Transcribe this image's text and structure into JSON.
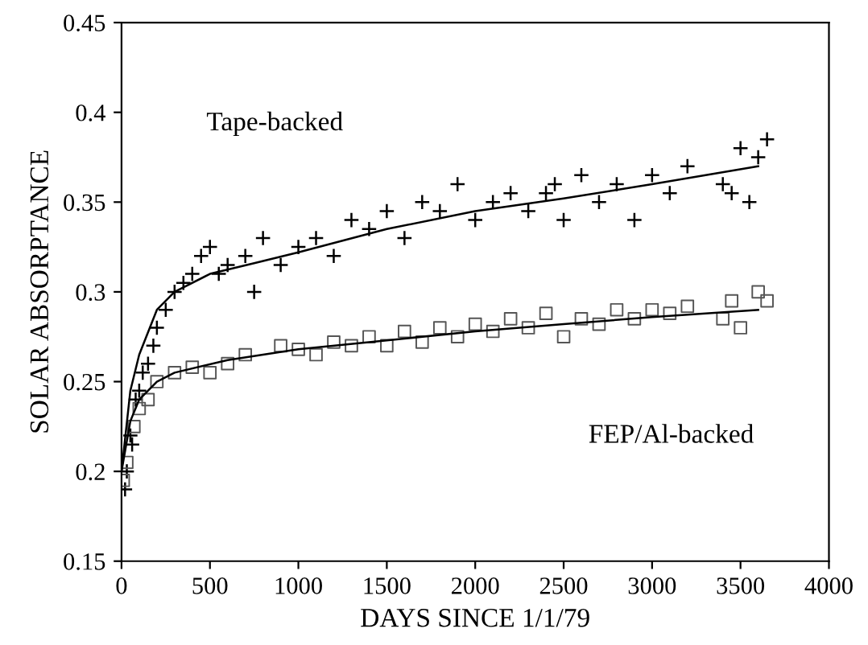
{
  "chart_data": {
    "type": "scatter",
    "xlabel": "DAYS SINCE 1/1/79",
    "ylabel": "SOLAR ABSORPTANCE",
    "xlim": [
      0,
      4000
    ],
    "xticks": [
      0,
      500,
      1000,
      1500,
      2000,
      2500,
      3000,
      3500,
      4000
    ],
    "ylim": [
      0.15,
      0.45
    ],
    "yticks": [
      0.15,
      0.2,
      0.25,
      0.3,
      0.35,
      0.4,
      0.45
    ],
    "grid": false,
    "legend": false,
    "annotations": [
      "Tape-backed",
      "FEP/Al-backed"
    ],
    "series": [
      {
        "type": "scatter",
        "marker": "cross",
        "color": "#000000",
        "x": [
          20,
          30,
          50,
          60,
          80,
          100,
          120,
          150,
          180,
          200,
          250,
          300,
          350,
          400,
          450,
          500,
          550,
          600,
          700,
          750,
          800,
          900,
          1000,
          1100,
          1200,
          1300,
          1400,
          1500,
          1600,
          1700,
          1800,
          1900,
          2000,
          2100,
          2200,
          2300,
          2400,
          2450,
          2500,
          2600,
          2700,
          2800,
          2900,
          3000,
          3100,
          3200,
          3400,
          3450,
          3500,
          3550,
          3600,
          3650
        ],
        "values": [
          0.19,
          0.2,
          0.22,
          0.215,
          0.24,
          0.245,
          0.255,
          0.26,
          0.27,
          0.28,
          0.29,
          0.3,
          0.305,
          0.31,
          0.32,
          0.325,
          0.31,
          0.315,
          0.32,
          0.3,
          0.33,
          0.315,
          0.325,
          0.33,
          0.32,
          0.34,
          0.335,
          0.345,
          0.33,
          0.35,
          0.345,
          0.36,
          0.34,
          0.35,
          0.355,
          0.345,
          0.355,
          0.36,
          0.34,
          0.365,
          0.35,
          0.36,
          0.34,
          0.365,
          0.355,
          0.37,
          0.36,
          0.355,
          0.38,
          0.35,
          0.375,
          0.385
        ]
      },
      {
        "type": "scatter",
        "marker": "square",
        "color": "#555555",
        "x": [
          10,
          30,
          50,
          70,
          100,
          150,
          200,
          300,
          400,
          500,
          600,
          700,
          800,
          900,
          1000,
          1100,
          1200,
          1300,
          1400,
          1500,
          1600,
          1700,
          1800,
          1900,
          2000,
          2100,
          2200,
          2300,
          2400,
          2500,
          2600,
          2700,
          2800,
          2900,
          3000,
          3100,
          3200,
          3400,
          3450,
          3500,
          3600,
          3650
        ],
        "values": [
          0.195,
          0.205,
          null,
          0.225,
          0.235,
          0.24,
          0.25,
          0.255,
          0.258,
          0.255,
          0.26,
          0.265,
          null,
          0.27,
          0.268,
          0.265,
          0.272,
          0.27,
          0.275,
          0.27,
          0.278,
          0.272,
          0.28,
          0.275,
          0.282,
          0.278,
          0.285,
          0.28,
          0.288,
          0.275,
          0.285,
          0.282,
          0.29,
          0.285,
          0.29,
          0.288,
          0.292,
          0.285,
          0.295,
          0.28,
          0.3,
          0.295
        ]
      },
      {
        "type": "line",
        "color": "#000000",
        "x": [
          0,
          50,
          100,
          200,
          300,
          500,
          750,
          1000,
          1500,
          2000,
          2500,
          3000,
          3600
        ],
        "values": [
          0.2,
          0.245,
          0.265,
          0.29,
          0.3,
          0.31,
          0.316,
          0.322,
          0.335,
          0.345,
          0.352,
          0.36,
          0.37
        ]
      },
      {
        "type": "line",
        "color": "#000000",
        "x": [
          0,
          50,
          100,
          200,
          300,
          600,
          1000,
          1500,
          2000,
          2500,
          3000,
          3600
        ],
        "values": [
          0.2,
          0.228,
          0.24,
          0.25,
          0.255,
          0.262,
          0.268,
          0.273,
          0.278,
          0.282,
          0.286,
          0.29
        ]
      }
    ]
  }
}
